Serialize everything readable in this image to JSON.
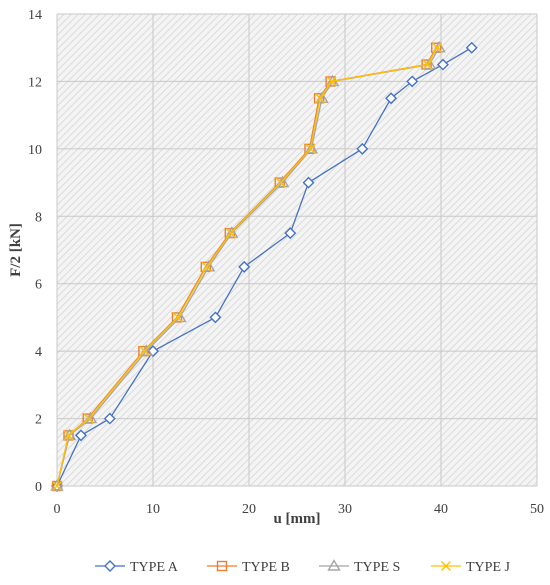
{
  "chart_data": {
    "type": "line",
    "title": "",
    "xlabel": "u [mm]",
    "ylabel": "F/2 [kN]",
    "xlim": [
      0,
      50
    ],
    "ylim": [
      0,
      14
    ],
    "x_ticks": [
      0,
      10,
      20,
      30,
      40,
      50
    ],
    "y_ticks": [
      0,
      2,
      4,
      6,
      8,
      10,
      12,
      14
    ],
    "grid": true,
    "legend_position": "bottom",
    "series": [
      {
        "name": "TYPE A",
        "color": "#4472c4",
        "marker": "diamond",
        "x": [
          0,
          2.5,
          5.5,
          10,
          16.5,
          19.5,
          24.3,
          26.2,
          31.8,
          34.8,
          37,
          40.2,
          43.2
        ],
        "y": [
          0,
          1.5,
          2,
          4,
          5,
          6.5,
          7.5,
          9,
          10,
          11.5,
          12,
          12.5,
          13
        ]
      },
      {
        "name": "TYPE B",
        "color": "#ed7d31",
        "marker": "square",
        "x": [
          0,
          1.2,
          3.2,
          9,
          12.5,
          15.5,
          18,
          23.2,
          26.3,
          27.3,
          28.5,
          38.5,
          39.5
        ],
        "y": [
          0,
          1.5,
          2,
          4,
          5,
          6.5,
          7.5,
          9,
          10,
          11.5,
          12,
          12.5,
          13
        ]
      },
      {
        "name": "TYPE S",
        "color": "#a5a5a5",
        "marker": "triangle",
        "x": [
          0,
          1.3,
          3.5,
          9.3,
          12.8,
          15.8,
          18.2,
          23.5,
          26.5,
          27.6,
          28.7,
          38.8,
          39.8
        ],
        "y": [
          0,
          1.5,
          2,
          4,
          5,
          6.5,
          7.5,
          9,
          10,
          11.5,
          12,
          12.5,
          13
        ]
      },
      {
        "name": "TYPE J",
        "color": "#ffc000",
        "marker": "x",
        "x": [
          0,
          1.2,
          3.3,
          9.1,
          12.6,
          15.6,
          18.1,
          23.3,
          26.4,
          27.4,
          28.6,
          38.6,
          39.6
        ],
        "y": [
          0,
          1.5,
          2,
          4,
          5,
          6.5,
          7.5,
          9,
          10,
          11.5,
          12,
          12.5,
          13
        ]
      }
    ]
  }
}
